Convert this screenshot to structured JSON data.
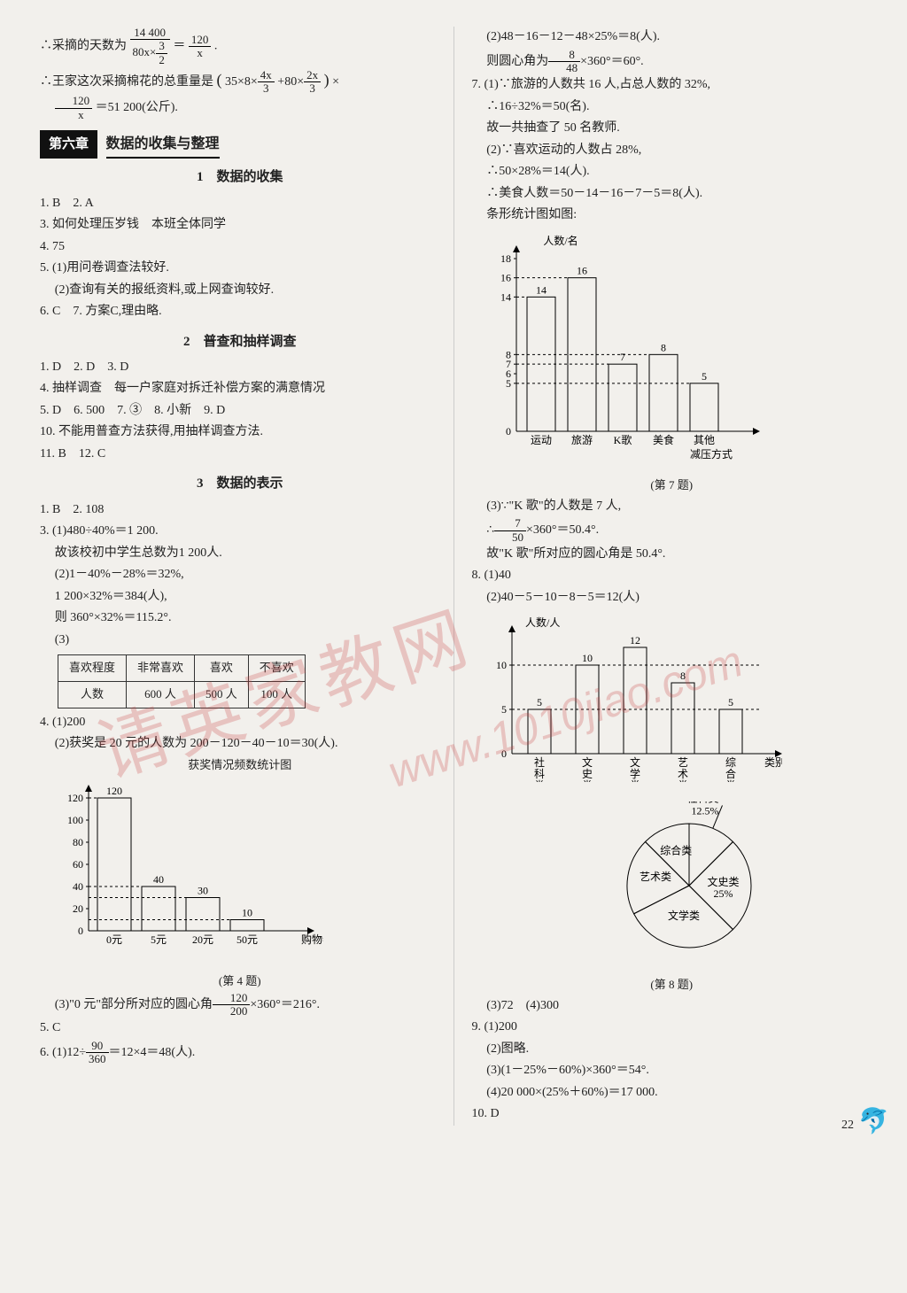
{
  "left": {
    "intro": {
      "l1_pre": "∴采摘的天数为",
      "frac1_num": "14 400",
      "frac1_den_a": "80x×",
      "frac1_den_frac_num": "3",
      "frac1_den_frac_den": "2",
      "eq": "＝",
      "frac2_num": "120",
      "frac2_den": "x",
      "period": ".",
      "l2_pre": "∴王家这次采摘棉花的总重量是",
      "paren_open": "(",
      "t1": "35×8×",
      "f4x_num": "4x",
      "f4x_den": "3",
      "plus": "+80×",
      "f2x_num": "2x",
      "f2x_den": "3",
      "paren_close": ")",
      "times": "×",
      "f120_num": "120",
      "f120_den": "x",
      "tail": "＝51 200(公斤)."
    },
    "chapter_box": "第六章",
    "chapter_title": "数据的收集与整理",
    "sec1_title": "1　数据的收集",
    "sec1_l1": "1. B　2. A",
    "sec1_l2": "3. 如何处理压岁钱　本班全体同学",
    "sec1_l3": "4. 75",
    "sec1_l4": "5. (1)用问卷调查法较好.",
    "sec1_l5": "(2)查询有关的报纸资料,或上网查询较好.",
    "sec1_l6": "6. C　7. 方案C,理由略.",
    "sec2_title": "2　普查和抽样调查",
    "sec2_l1": "1. D　2. D　3. D",
    "sec2_l2": "4. 抽样调查　每一户家庭对拆迁补偿方案的满意情况",
    "sec2_l3": "5. D　6. 500　7. ③　8. 小新　9. D",
    "sec2_l4": "10. 不能用普查方法获得,用抽样调查方法.",
    "sec2_l5": "11. B　12. C",
    "sec3_title": "3　数据的表示",
    "sec3_l1": "1. B　2. 108",
    "sec3_l2": "3. (1)480÷40%＝1 200.",
    "sec3_l3": "故该校初中学生总数为1 200人.",
    "sec3_l4": "(2)1－40%－28%＝32%,",
    "sec3_l5": "1 200×32%＝384(人),",
    "sec3_l6": "则 360°×32%＝115.2°.",
    "sec3_l7": "(3)",
    "table3": {
      "r1": [
        "喜欢程度",
        "非常喜欢",
        "喜欢",
        "不喜欢"
      ],
      "r2": [
        "人数",
        "600 人",
        "500 人",
        "100 人"
      ]
    },
    "q4_l1": "4. (1)200",
    "q4_l2": "(2)获奖是 20 元的人数为 200－120－40－10＝30(人).",
    "chart4": {
      "title": "获奖情况频数统计图",
      "yticks": [
        "0",
        "20",
        "40",
        "60",
        "80",
        "100",
        "120"
      ],
      "xticks": [
        "0元",
        "5元",
        "20元",
        "50元"
      ],
      "values": [
        120,
        40,
        30,
        10
      ],
      "labels": [
        "120",
        "40",
        "30",
        "10"
      ],
      "xaxis_label": "购物券",
      "caption": "(第 4 题)",
      "axis_color": "#000",
      "bar_border": "#000",
      "bar_fill": "#ffffff00",
      "ymax": 120
    },
    "q4_l3a": "(3)\"0 元\"部分所对应的圆心角",
    "q4_f_num": "120",
    "q4_f_den": "200",
    "q4_l3b": "×360°＝216°.",
    "q5": "5. C",
    "q6_pre": "6. (1)12÷",
    "q6_f_num": "90",
    "q6_f_den": "360",
    "q6_tail": "＝12×4＝48(人)."
  },
  "right": {
    "l1": "(2)48－16－12－48×25%＝8(人).",
    "l2_a": "则圆心角为",
    "l2_f_num": "8",
    "l2_f_den": "48",
    "l2_b": "×360°＝60°.",
    "q7_l1": "7. (1)∵旅游的人数共 16 人,占总人数的 32%,",
    "q7_l2": "∴16÷32%＝50(名).",
    "q7_l3": "故一共抽查了 50 名教师.",
    "q7_l4": "(2)∵喜欢运动的人数占 28%,",
    "q7_l5": "∴50×28%＝14(人).",
    "q7_l6": "∴美食人数＝50－14－16－7－5＝8(人).",
    "q7_l7": "条形统计图如图:",
    "chart7": {
      "ylabel": "人数/名",
      "yticks": [
        "0",
        "5",
        "6",
        "7",
        "8",
        "14",
        "16",
        "18"
      ],
      "ytick_vals": [
        0,
        5,
        6,
        7,
        8,
        14,
        16,
        18
      ],
      "xticks": [
        "运动",
        "旅游",
        "K歌",
        "美食",
        "其他"
      ],
      "values": [
        14,
        16,
        7,
        8,
        5
      ],
      "labels": [
        "14",
        "16",
        "7",
        "8",
        "5"
      ],
      "xaxis_label": "减压方式",
      "caption": "(第 7 题)",
      "ymax": 18,
      "redraw_x": 2,
      "redraw_val": 8,
      "axis_color": "#000"
    },
    "q7_l8": "(3)∵\"K 歌\"的人数是 7 人,",
    "q7_l9a": "∴",
    "q7_f_num": "7",
    "q7_f_den": "50",
    "q7_l9b": "×360°＝50.4°.",
    "q7_l10": "故\"K 歌\"所对应的圆心角是 50.4°.",
    "q8_l1": "8. (1)40",
    "q8_l2": "(2)40－5－10－8－5＝12(人)",
    "chart8": {
      "ylabel": "人数/人",
      "yticks": [
        0,
        5,
        10
      ],
      "ytick_labels": [
        "0",
        "5",
        "10"
      ],
      "xticks": [
        "社科类",
        "文史类",
        "文学类",
        "艺术类",
        "综合类"
      ],
      "values": [
        5,
        10,
        12,
        8,
        5
      ],
      "labels": [
        "5",
        "10",
        "12",
        "8",
        "5"
      ],
      "xaxis_label": "类别",
      "ymax": 13,
      "axis_color": "#000"
    },
    "pie8": {
      "slices": [
        {
          "label": "社科类",
          "sub": "12.5%",
          "value": 12.5,
          "fill": "none"
        },
        {
          "label": "文史类",
          "sub": "25%",
          "value": 25,
          "fill": "none"
        },
        {
          "label": "文学类",
          "sub": "",
          "value": 30,
          "fill": "none"
        },
        {
          "label": "艺术类",
          "sub": "",
          "value": 20,
          "fill": "none"
        },
        {
          "label": "综合类",
          "sub": "",
          "value": 12.5,
          "fill": "none"
        }
      ],
      "border": "#000",
      "caption": "(第 8 题)"
    },
    "q8_l3": "(3)72　(4)300",
    "q9_l1": "9. (1)200",
    "q9_l2": "(2)图略.",
    "q9_l3": "(3)(1－25%－60%)×360°＝54°.",
    "q9_l4": "(4)20 000×(25%＋60%)＝17 000.",
    "q10": "10. D"
  },
  "watermark1": "请英家教网",
  "watermark2": "www.1010jiao.com",
  "pagenum": "22"
}
